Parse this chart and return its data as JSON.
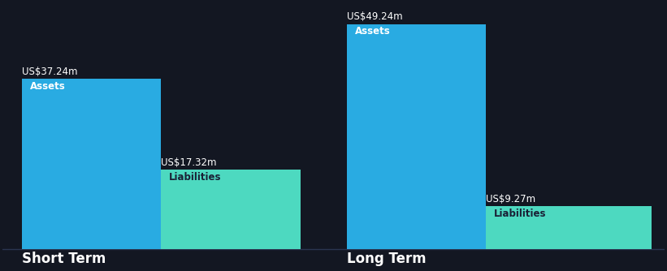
{
  "background_color": "#131722",
  "sections": [
    {
      "label": "Short Term",
      "assets_value": 37.24,
      "liabilities_value": 17.32,
      "assets_label": "Assets",
      "liabilities_label": "Liabilities",
      "assets_value_str": "US$37.24m",
      "liabilities_value_str": "US$17.32m"
    },
    {
      "label": "Long Term",
      "assets_value": 49.24,
      "liabilities_value": 9.27,
      "assets_label": "Assets",
      "liabilities_label": "Liabilities",
      "assets_value_str": "US$49.24m",
      "liabilities_value_str": "US$9.27m"
    }
  ],
  "assets_color": "#29ABE2",
  "liabilities_color": "#4DD9C0",
  "text_color_white": "#ffffff",
  "text_color_dark": "#1a2035",
  "value_fontsize": 8.5,
  "label_fontsize": 8.5,
  "section_label_fontsize": 12,
  "max_value": 52,
  "baseline_color": "#2a3550"
}
